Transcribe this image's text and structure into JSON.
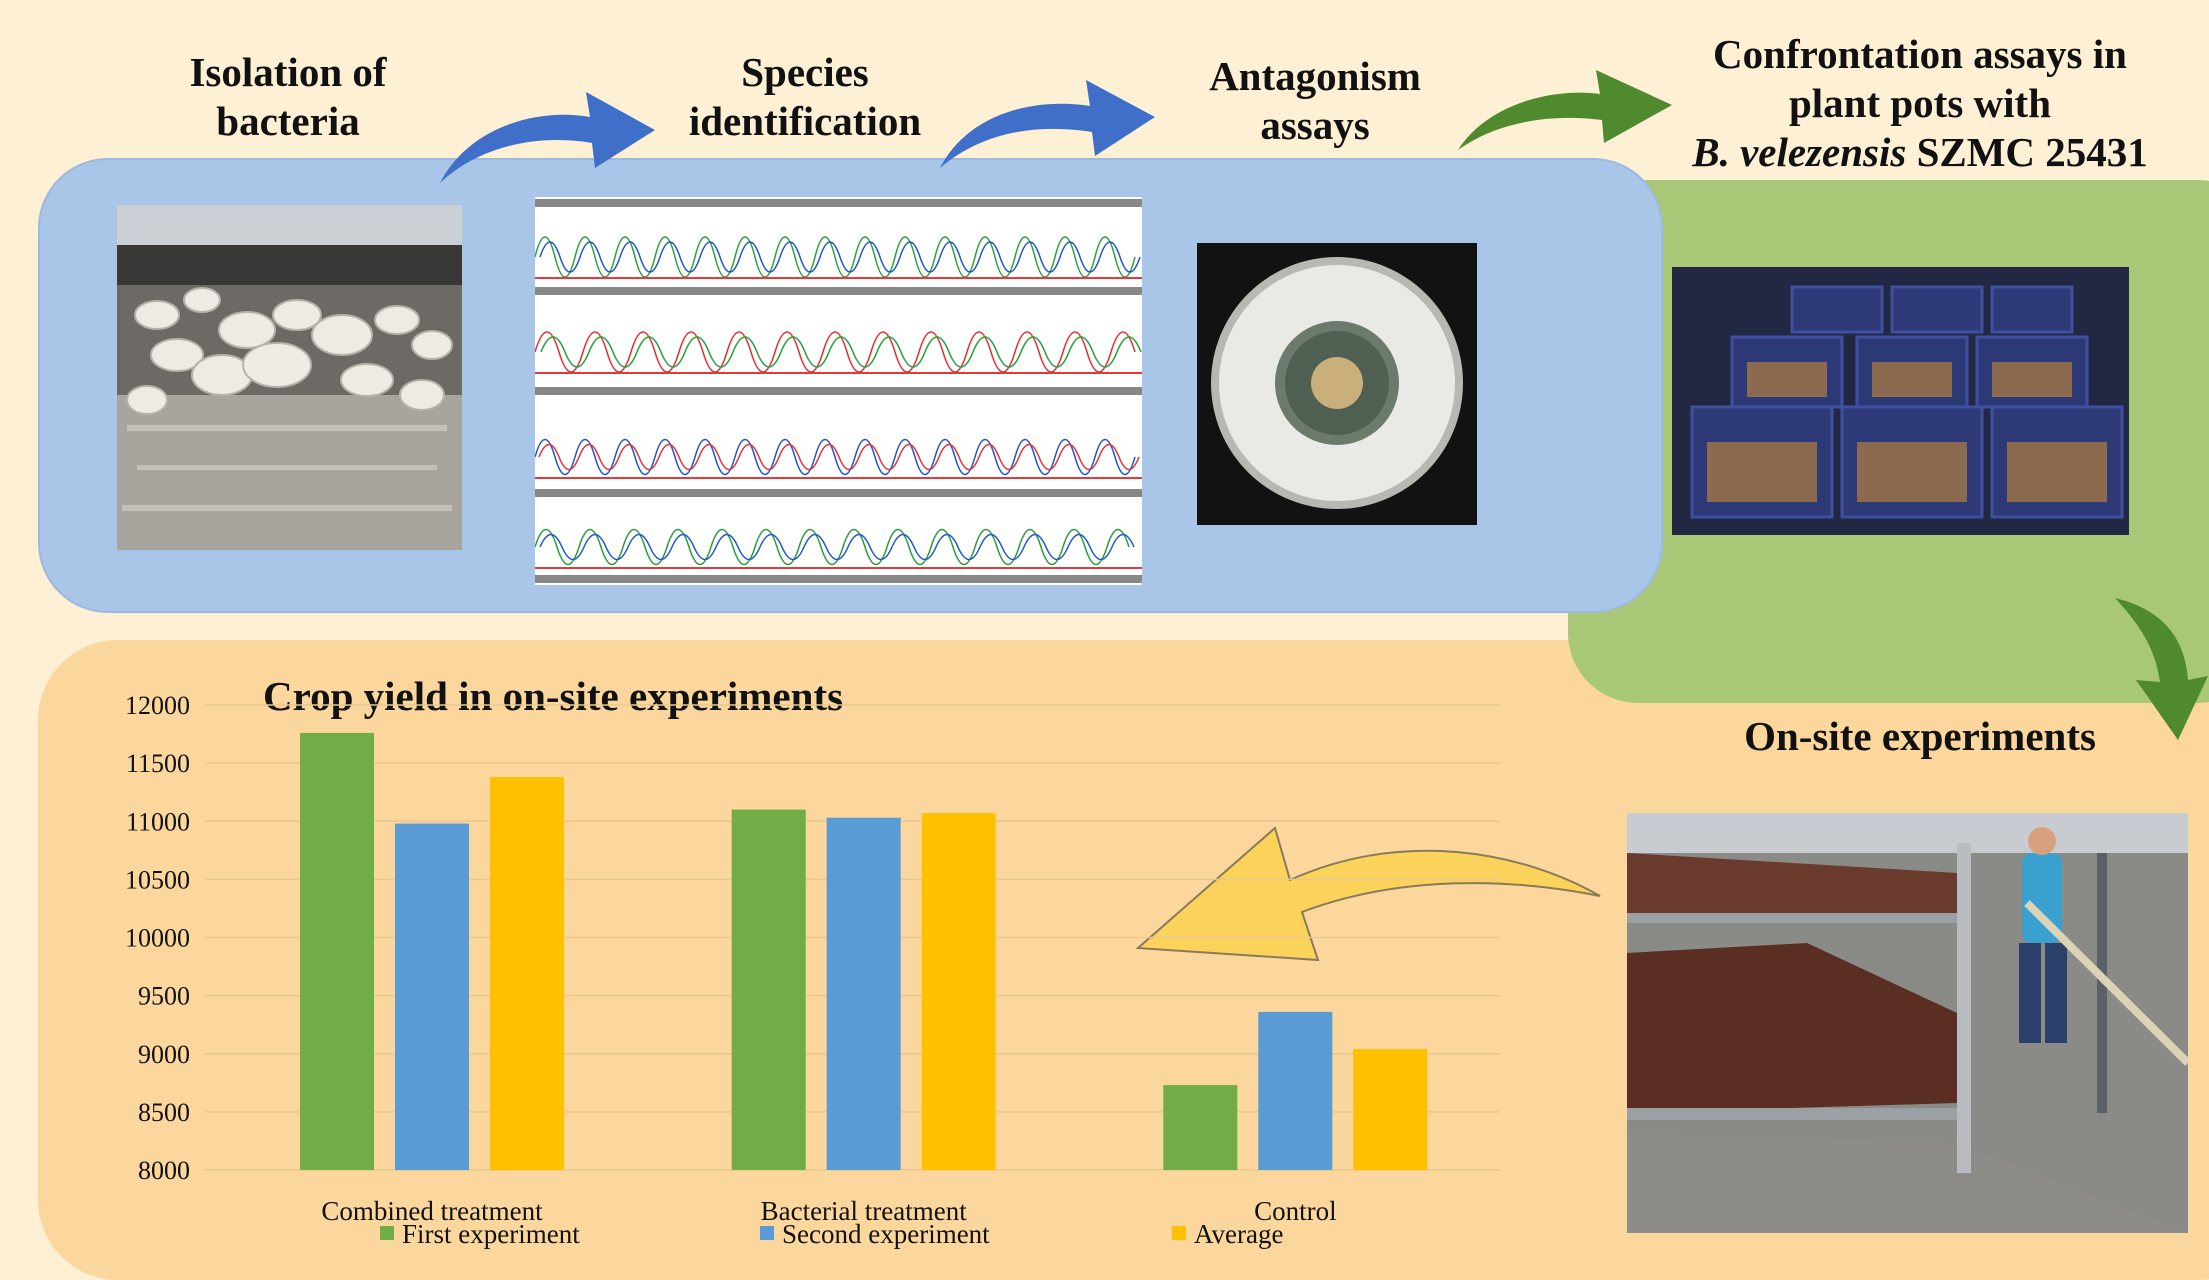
{
  "steps": {
    "isolation": "Isolation of\nbacteria",
    "species": "Species\nidentification",
    "antagonism": "Antagonism\nassays",
    "confrontation_line1": "Confrontation assays in",
    "confrontation_line2": "plant pots with",
    "confrontation_species": "B. velezensis",
    "confrontation_strain": " SZMC 25431",
    "onsite": "On-site experiments"
  },
  "colors": {
    "blue_panel": "#a9c5e8",
    "green_panel": "#a8c878",
    "orange_panel": "#fbd79d",
    "blue_arrow": "#3f6fc8",
    "green_arrow": "#4f8a2e",
    "yellow_arrow": "#fbd35a"
  },
  "chart_data": {
    "type": "bar",
    "title": "Crop yield in on-site experiments",
    "categories": [
      "Combined treatment",
      "Bacterial treatment",
      "Control"
    ],
    "series": [
      {
        "name": "First experiment",
        "color": "#70ad47",
        "values": [
          11760,
          11100,
          8730
        ]
      },
      {
        "name": "Second experiment",
        "color": "#5b9bd5",
        "values": [
          10980,
          11030,
          9360
        ]
      },
      {
        "name": "Average",
        "color": "#ffc000",
        "values": [
          11380,
          11070,
          9040
        ]
      }
    ],
    "ylim": [
      8000,
      12000
    ],
    "yticks": [
      "12000",
      "11500",
      "11000",
      "10500",
      "10000",
      "9500",
      "9000",
      "8500",
      "8000"
    ],
    "grid": true,
    "legend_position": "bottom"
  }
}
